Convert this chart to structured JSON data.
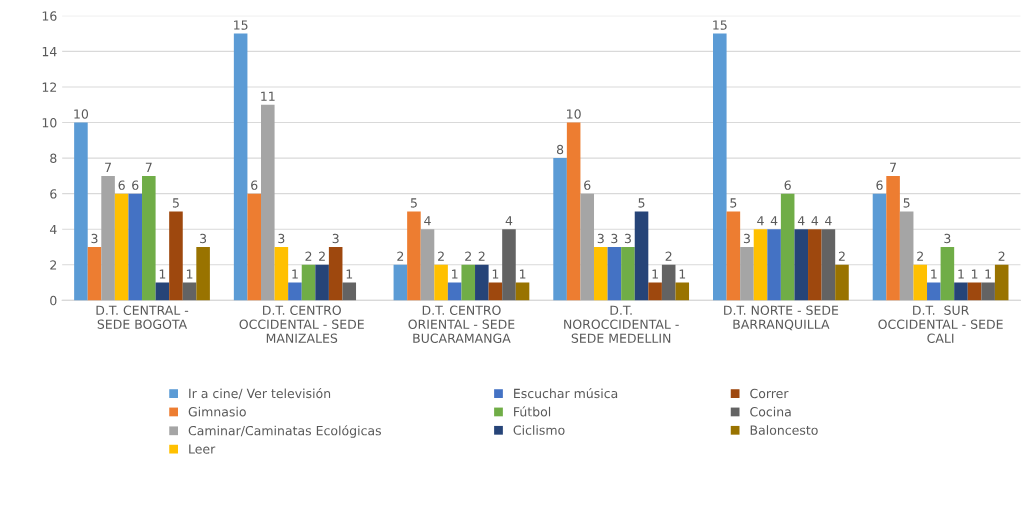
{
  "chart_data": {
    "type": "bar",
    "categories": [
      "D.T. CENTRAL -\nSEDE BOGOTA",
      "D.T. CENTRO\nOCCIDENTAL - SEDE\nMANIZALES",
      "D.T. CENTRO\nORIENTAL - SEDE\nBUCARAMANGA",
      "D.T.\nNOROCCIDENTAL -\nSEDE MEDELLIN",
      "D.T. NORTE - SEDE\nBARRANQUILLA",
      "D.T.  SUR\nOCCIDENTAL - SEDE\nCALI"
    ],
    "series": [
      {
        "name": "Ir a cine/ Ver televisión",
        "color": "#5b9bd5",
        "values": [
          10,
          15,
          2,
          8,
          15,
          6
        ]
      },
      {
        "name": "Gimnasio",
        "color": "#ed7d31",
        "values": [
          3,
          6,
          5,
          10,
          5,
          7
        ]
      },
      {
        "name": "Caminar/Caminatas Ecológicas",
        "color": "#a5a5a5",
        "values": [
          7,
          11,
          4,
          6,
          3,
          5
        ]
      },
      {
        "name": "Leer",
        "color": "#ffc000",
        "values": [
          6,
          3,
          2,
          3,
          4,
          2
        ]
      },
      {
        "name": "Escuchar música",
        "color": "#4472c4",
        "values": [
          6,
          1,
          1,
          3,
          4,
          1
        ]
      },
      {
        "name": "Fútbol",
        "color": "#70ad47",
        "values": [
          7,
          2,
          2,
          3,
          6,
          3
        ]
      },
      {
        "name": "Ciclismo",
        "color": "#264478",
        "values": [
          1,
          2,
          2,
          5,
          4,
          1
        ]
      },
      {
        "name": "Correr",
        "color": "#9e480e",
        "values": [
          5,
          3,
          1,
          1,
          4,
          1
        ]
      },
      {
        "name": "Cocina",
        "color": "#636363",
        "values": [
          1,
          1,
          4,
          2,
          4,
          1
        ]
      },
      {
        "name": "Baloncesto",
        "color": "#997300",
        "values": [
          3,
          null,
          1,
          1,
          2,
          2
        ]
      }
    ],
    "ylim": [
      0,
      16
    ],
    "yticks": [
      0,
      2,
      4,
      6,
      8,
      10,
      12,
      14,
      16
    ],
    "grid": "y",
    "legend": "bottom",
    "data_labels": true
  }
}
